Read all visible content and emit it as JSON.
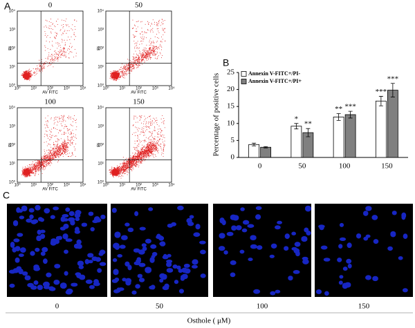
{
  "panel_labels": [
    "A",
    "B",
    "C"
  ],
  "flow_plots": {
    "titles": [
      "0",
      "50",
      "100",
      "150"
    ],
    "x_label": "AV FITC",
    "y_label": "PI",
    "tick_labels": [
      "10⁰",
      "10¹",
      "10²",
      "10³",
      "10⁴"
    ]
  },
  "chart_data": {
    "type": "bar",
    "y_label": "Percentage of positive cells",
    "categories": [
      "0",
      "50",
      "100",
      "150"
    ],
    "series": [
      {
        "name": "Annexin V-FITC+/PI-",
        "color": "#ffffff",
        "values": [
          3.8,
          9.2,
          11.9,
          16.6
        ],
        "errors": [
          0.4,
          0.8,
          1.0,
          1.4
        ],
        "significance": [
          null,
          "*",
          "**",
          "***"
        ]
      },
      {
        "name": "Annexin V-FITC+/PI+",
        "color": "#808080",
        "values": [
          3.0,
          7.3,
          12.6,
          19.8
        ],
        "errors": [
          0.2,
          1.2,
          1.0,
          2.0
        ],
        "significance": [
          null,
          "**",
          "***",
          "***"
        ]
      }
    ],
    "ylim": [
      0,
      25
    ],
    "yticks": [
      0,
      5,
      10,
      15,
      20,
      25
    ],
    "legend": "upper-left"
  },
  "images": {
    "labels": [
      "0",
      "50",
      "100",
      "150"
    ],
    "axis_label": "Osthole ( μM)"
  }
}
